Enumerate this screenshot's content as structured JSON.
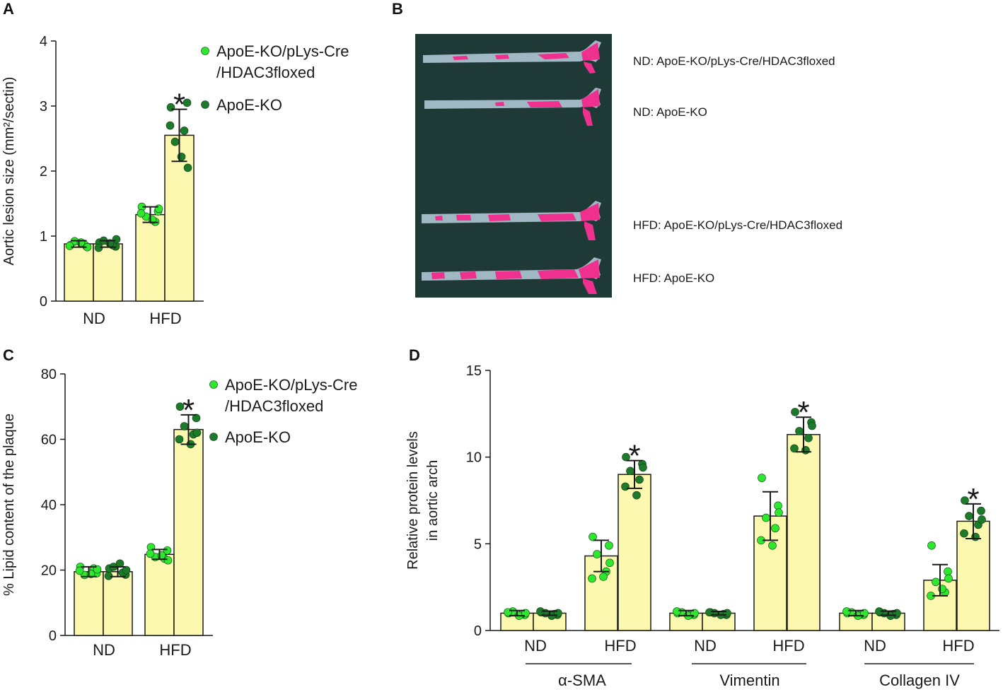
{
  "panels": {
    "A": "A",
    "B": "B",
    "C": "C",
    "D": "D"
  },
  "colors": {
    "bar_fill": "#fcf8b0",
    "bar_stroke": "#1a1a1a",
    "light_green": "#2ee82e",
    "dark_green": "#1d7a2a",
    "aorta_bg": "#1f3a36",
    "aorta_tissue": "#9fb8c4",
    "aorta_stain": "#f0308e"
  },
  "chart_data": [
    {
      "id": "A",
      "type": "bar",
      "title": "",
      "xlabel": "",
      "ylabel": "Aortic lesion size (mm²/sectin)",
      "ylim": [
        0,
        4
      ],
      "yticks": [
        "0",
        "1",
        "2",
        "3",
        "4"
      ],
      "categories": [
        "ND",
        "HFD"
      ],
      "legend": [
        "ApoE-KO/pLys-Cre\n/HDAC3floxed",
        "ApoE-KO"
      ],
      "legend_lines": [
        [
          "ApoE-KO/pLys-Cre",
          "/HDAC3floxed"
        ],
        [
          "ApoE-KO"
        ]
      ],
      "legend_position": "right",
      "series": [
        {
          "name": "ApoE-KO/pLys-Cre/HDAC3floxed",
          "values": [
            0.88,
            1.33
          ],
          "errors": [
            0.05,
            0.12
          ],
          "points": [
            [
              0.86,
              0.84,
              0.92,
              0.88,
              0.85,
              0.9,
              0.83
            ],
            [
              1.45,
              1.38,
              1.3,
              1.22,
              1.35,
              1.25,
              1.42
            ]
          ]
        },
        {
          "name": "ApoE-KO",
          "values": [
            0.88,
            2.55
          ],
          "errors": [
            0.05,
            0.4
          ],
          "points": [
            [
              0.9,
              0.84,
              0.93,
              0.86,
              0.82,
              0.89,
              0.95
            ],
            [
              2.98,
              3.05,
              2.45,
              2.62,
              2.7,
              2.22,
              2.05
            ]
          ]
        }
      ],
      "significance": [
        "",
        "*"
      ]
    },
    {
      "id": "C",
      "type": "bar",
      "title": "",
      "xlabel": "",
      "ylabel": "% Lipid content of the plaque",
      "ylim": [
        0,
        80
      ],
      "yticks": [
        "0",
        "20",
        "40",
        "60",
        "80"
      ],
      "categories": [
        "ND",
        "HFD"
      ],
      "legend": [
        "ApoE-KO/pLys-Cre\n/HDAC3floxed",
        "ApoE-KO"
      ],
      "legend_lines": [
        [
          "ApoE-KO/pLys-Cre",
          "/HDAC3floxed"
        ],
        [
          "ApoE-KO"
        ]
      ],
      "legend_position": "right",
      "series": [
        {
          "name": "ApoE-KO/pLys-Cre/HDAC3floxed",
          "values": [
            19.5,
            24.8
          ],
          "errors": [
            1.5,
            1.5
          ],
          "points": [
            [
              21,
              19,
              18.5,
              20.5,
              19.8,
              18.8,
              20.2
            ],
            [
              27,
              26,
              24,
              23.5,
              25,
              24.5,
              23
            ]
          ]
        },
        {
          "name": "ApoE-KO",
          "values": [
            19.5,
            63
          ],
          "errors": [
            1.5,
            4.5
          ],
          "points": [
            [
              20.5,
              18.6,
              21,
              19.2,
              18.2,
              22,
              20
            ],
            [
              70,
              66.5,
              64,
              61.5,
              60,
              58.5,
              62
            ]
          ]
        }
      ],
      "significance": [
        "",
        "*"
      ]
    },
    {
      "id": "D",
      "type": "bar",
      "title": "",
      "xlabel": "",
      "ylabel": "Relative protein levels\nin aortic arch",
      "ylabel_lines": [
        "Relative protein levels",
        "in aortic arch"
      ],
      "ylim": [
        0,
        15
      ],
      "yticks": [
        "0",
        "5",
        "10",
        "15"
      ],
      "categories": [
        "ND",
        "HFD",
        "ND",
        "HFD",
        "ND",
        "HFD"
      ],
      "groups": [
        "α-SMA",
        "Vimentin",
        "Collagen IV"
      ],
      "series": [
        {
          "name": "ApoE-KO/pLys-Cre/HDAC3floxed",
          "values": [
            1.0,
            4.3,
            1.0,
            6.6,
            1.0,
            2.9
          ],
          "errors": [
            0.15,
            0.9,
            0.15,
            1.4,
            0.15,
            0.9
          ],
          "points": [
            [
              1.0,
              0.9,
              1.1,
              0.95,
              1.05,
              0.85,
              1.0
            ],
            [
              5.4,
              4.9,
              4.4,
              3.4,
              3.0,
              3.1,
              3.9
            ],
            [
              1.0,
              0.9,
              1.05,
              0.95,
              1.1,
              0.85,
              1.0
            ],
            [
              8.8,
              7.2,
              6.5,
              5.9,
              5.2,
              4.9,
              6.8
            ],
            [
              1.0,
              0.9,
              1.05,
              0.95,
              1.1,
              0.85,
              1.0
            ],
            [
              4.9,
              3.4,
              2.8,
              2.2,
              2.0,
              2.4,
              3.0
            ]
          ]
        },
        {
          "name": "ApoE-KO",
          "values": [
            1.0,
            9.0,
            1.0,
            11.3,
            1.0,
            6.3
          ],
          "errors": [
            0.12,
            0.8,
            0.1,
            1.0,
            0.12,
            1.0
          ],
          "points": [
            [
              1.05,
              0.9,
              1.0,
              0.95,
              1.1,
              0.85,
              1.0
            ],
            [
              10.0,
              9.6,
              9.2,
              8.7,
              8.3,
              7.8,
              9.4
            ],
            [
              1.05,
              0.9,
              1.0,
              0.95,
              1.05,
              0.9,
              1.0
            ],
            [
              12.6,
              12.0,
              11.5,
              11.1,
              10.5,
              10.4,
              11.8
            ],
            [
              1.05,
              0.9,
              1.0,
              0.95,
              1.1,
              0.85,
              1.0
            ],
            [
              7.5,
              6.9,
              6.6,
              6.1,
              5.6,
              5.4,
              6.4
            ]
          ]
        }
      ],
      "significance": [
        "",
        "*",
        "",
        "*",
        "",
        "*"
      ]
    }
  ],
  "aorta_image": {
    "labels": [
      "ND: ApoE-KO/pLys-Cre/HDAC3floxed",
      "ND: ApoE-KO",
      "HFD: ApoE-KO/pLys-Cre/HDAC3floxed",
      "HFD: ApoE-KO"
    ]
  }
}
